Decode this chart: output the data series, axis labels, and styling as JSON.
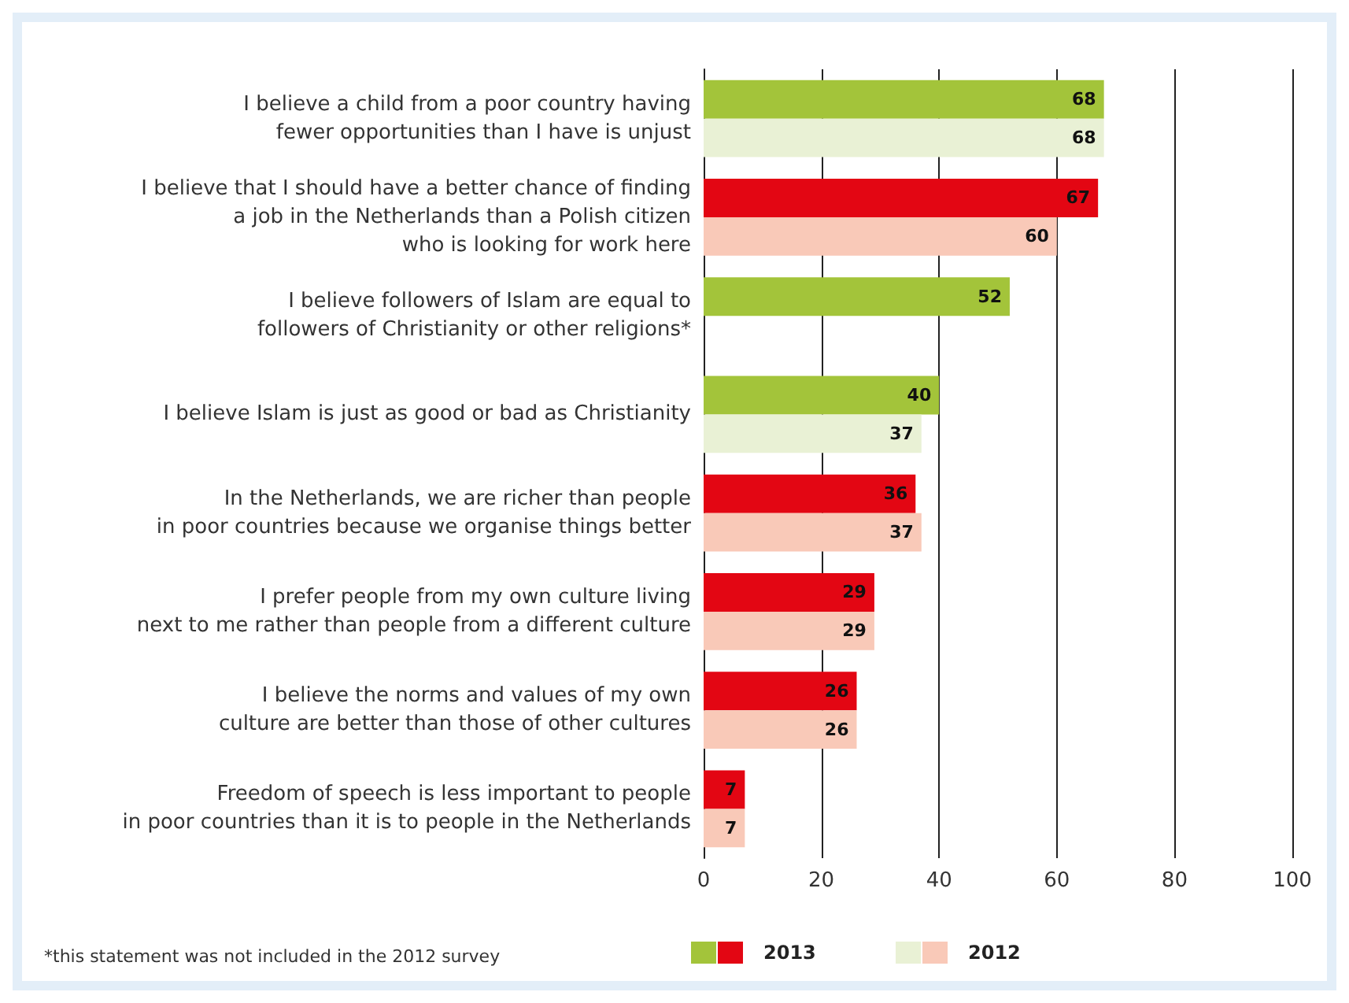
{
  "chart_data": {
    "type": "bar",
    "orientation": "horizontal",
    "categories": [
      "I believe a child from a poor country having\nfewer opportunities than I have is unjust",
      "I believe that I should have a better chance of finding\na job in the Netherlands than a Polish citizen\nwho is looking for work here",
      "I believe followers of Islam are equal to\nfollowers of Christianity or other religions*",
      "I believe Islam is just as good or bad as Christianity",
      "In the Netherlands, we are richer than people\nin poor countries because we organise things better",
      "I prefer people from my own culture living\nnext to me rather than people from a different culture",
      "I believe the norms and values of my own\nculture are better than those of other cultures",
      "Freedom of speech is less important to people\nin poor countries than it is to people in the Netherlands"
    ],
    "series": [
      {
        "name": "2013",
        "colors": [
          "#a3c43a",
          "#e30613",
          "#a3c43a",
          "#a3c43a",
          "#e30613",
          "#e30613",
          "#e30613",
          "#e30613"
        ],
        "values": [
          68,
          67,
          52,
          40,
          36,
          29,
          26,
          7
        ]
      },
      {
        "name": "2012",
        "colors": [
          "#e9f1d5",
          "#f9c9b8",
          "#e9f1d5",
          "#e9f1d5",
          "#f9c9b8",
          "#f9c9b8",
          "#f9c9b8",
          "#f9c9b8"
        ],
        "values": [
          68,
          60,
          null,
          37,
          37,
          29,
          26,
          7
        ]
      }
    ],
    "xlim": [
      0,
      100
    ],
    "xticks": [
      0,
      20,
      40,
      60,
      80,
      100
    ],
    "grid": "x",
    "data_labels": true,
    "legend": "bottom",
    "annotations": [
      "*this statement was not included in the 2012 survey"
    ]
  }
}
